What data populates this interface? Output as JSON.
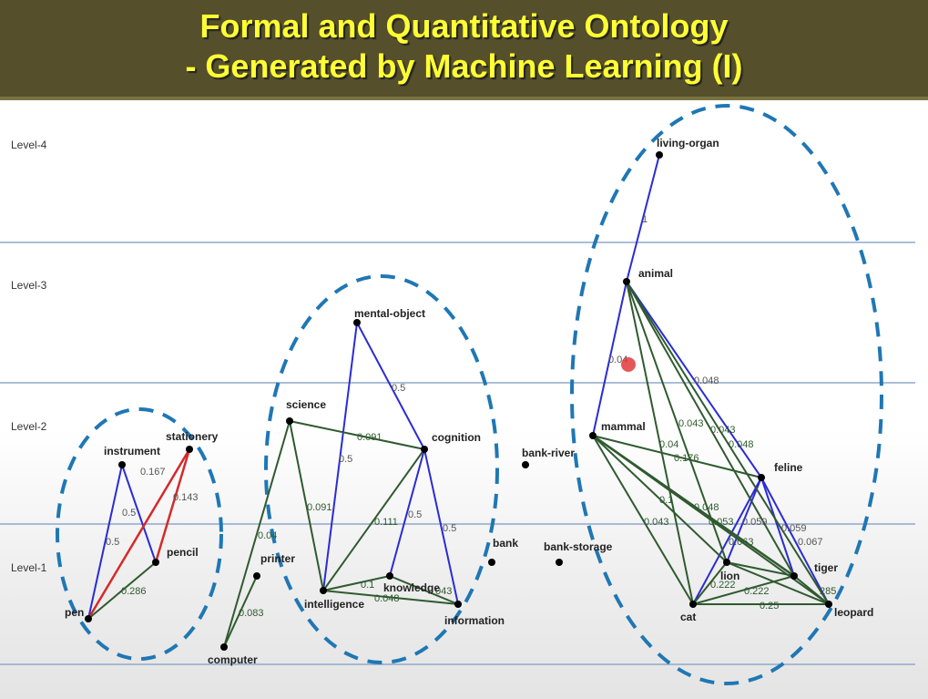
{
  "title": {
    "line1": "Formal and Quantitative Ontology",
    "line2": "- Generated by Machine Learning (I)"
  },
  "colors": {
    "title_bg": "#55502b",
    "title_text": "#ffff33",
    "level_line": "#8fa8cc",
    "blue_edge": "#2b2bd6",
    "red_edge": "#d42a2a",
    "green_edge": "#2f5a2f",
    "ellipse": "#1f77b4"
  },
  "levels": [
    "Level-4",
    "Level-3",
    "Level-2",
    "Level-1"
  ],
  "nodes": {
    "pen": "pen",
    "instrument": "instrument",
    "stationery": "stationery",
    "pencil": "pencil",
    "computer": "computer",
    "printer": "printer",
    "science": "science",
    "mental_object": "mental-object",
    "cognition": "cognition",
    "intelligence": "intelligence",
    "knowledge": "knowledge",
    "information": "information",
    "bank": "bank",
    "bank_river": "bank-river",
    "bank_storage": "bank-storage",
    "living_organ": "living-organ",
    "animal": "animal",
    "mammal": "mammal",
    "feline": "feline",
    "lion": "lion",
    "tiger": "tiger",
    "cat": "cat",
    "leopard": "leopard"
  },
  "weights": {
    "w0_167": "0.167",
    "w0_143": "0.143",
    "w0_5a": "0.5",
    "w0_5b": "0.5",
    "w0_286": "0.286",
    "w0_04": "0.04",
    "w0_083": "0.083",
    "w0_5c": "0.5",
    "w0_091a": "0.091",
    "w0_5d": "0.5",
    "w0_091b": "0.091",
    "w0_111": "0.111",
    "w0_5e": "0.5",
    "w0_5f": "0.5",
    "w0_1": "0.1",
    "w0_048": "0.048",
    "w043": "043",
    "w1": "1",
    "w0_04b": "0.04",
    "w0_048b": "0.048",
    "w0_043": "0.043",
    "w0_043b": "0.043",
    "w0_048c": "0.048",
    "w0_04c": "0.04",
    "w0_176": "0.176",
    "w0_1b": "0.1",
    "w0_048d": "0.048",
    "w0_043c": "0.043",
    "w0_053": "0.053",
    "w0_059": "0.059",
    "w0_059b": "0.059",
    "w0_067": "0.067",
    "w0_063": "0.063",
    "w0_222": "0.222",
    "w0_222b": "0.222",
    "w0_25": "0.25",
    "w285": "285"
  }
}
